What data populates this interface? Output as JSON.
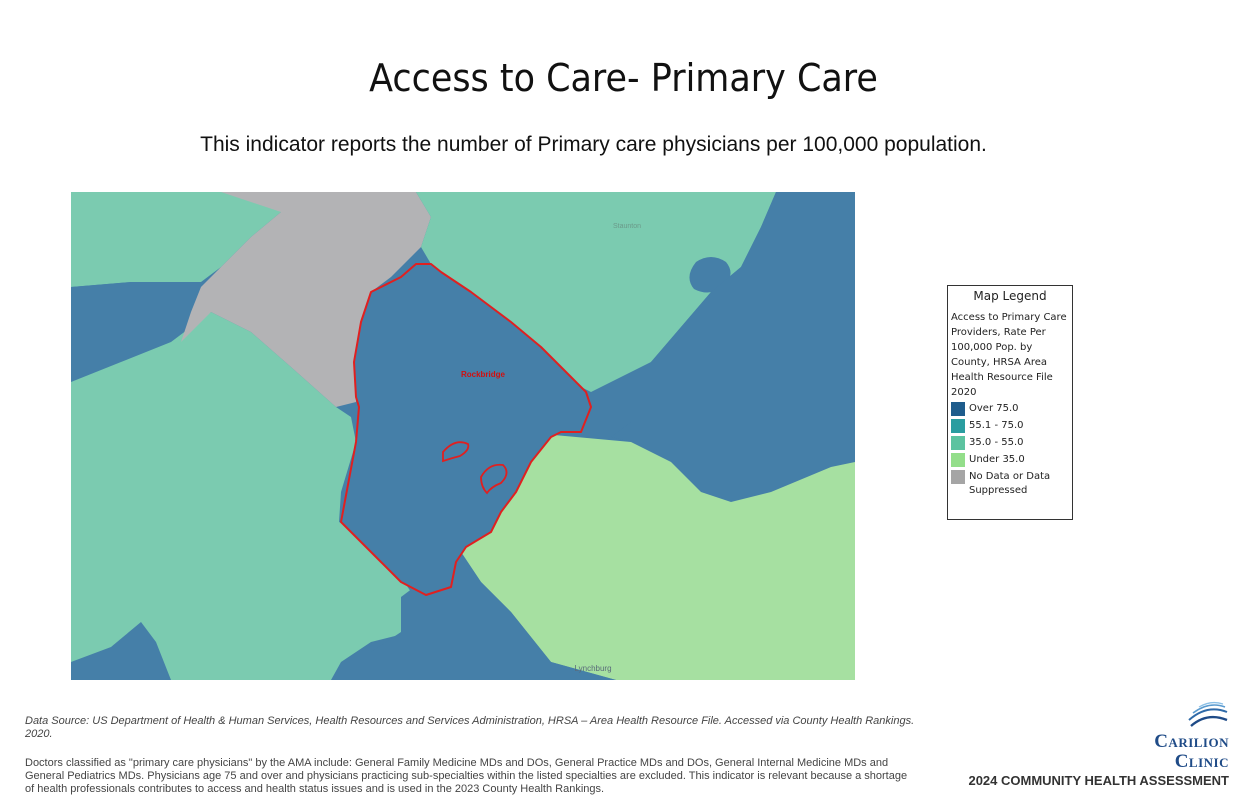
{
  "header": {
    "title": "Access to Care- Primary Care",
    "subtitle": "This indicator reports the number of Primary care physicians per 100,000 population."
  },
  "map": {
    "highlighted_county": "Rockbridge",
    "place_labels": {
      "staunton": "Staunton",
      "lynchburg": "Lynchburg"
    },
    "colors": {
      "over_75": "#457fa8",
      "range_55_75": "#2a9da0",
      "range_35_55": "#7bcbb0",
      "under_35": "#a6e0a1",
      "no_data": "#b3b3b5",
      "highlight_outline": "#e02020"
    }
  },
  "legend": {
    "title": "Map Legend",
    "description": "Access to Primary Care Providers, Rate Per 100,000 Pop. by County, HRSA Area Health Resource File 2020",
    "items": [
      {
        "label": "Over 75.0",
        "color": "#1e5c8c"
      },
      {
        "label": "55.1 - 75.0",
        "color": "#2a9da0"
      },
      {
        "label": "35.0 - 55.0",
        "color": "#5cc3a0"
      },
      {
        "label": "Under 35.0",
        "color": "#93de8a"
      },
      {
        "label": "No Data or Data Suppressed",
        "color": "#a5a5a5"
      }
    ]
  },
  "footer": {
    "source": "Data Source: US Department of Health & Human Services, Health Resources and Services Administration, HRSA – Area Health Resource File. Accessed via County Health Rankings. 2020.",
    "definition": "Doctors classified as \"primary care physicians\" by the AMA include: General Family Medicine MDs and DOs, General Practice MDs and DOs, General Internal Medicine MDs and General Pediatrics MDs. Physicians age 75 and over and physicians practicing sub-specialties within the listed specialties are excluded. This indicator is relevant because a shortage of health professionals contributes to access and health status issues and is used in the 2023 County Health Rankings."
  },
  "brand": {
    "name_line1": "Carilion",
    "name_line2": "Clinic",
    "tagline": "2024 COMMUNITY HEALTH ASSESSMENT"
  }
}
